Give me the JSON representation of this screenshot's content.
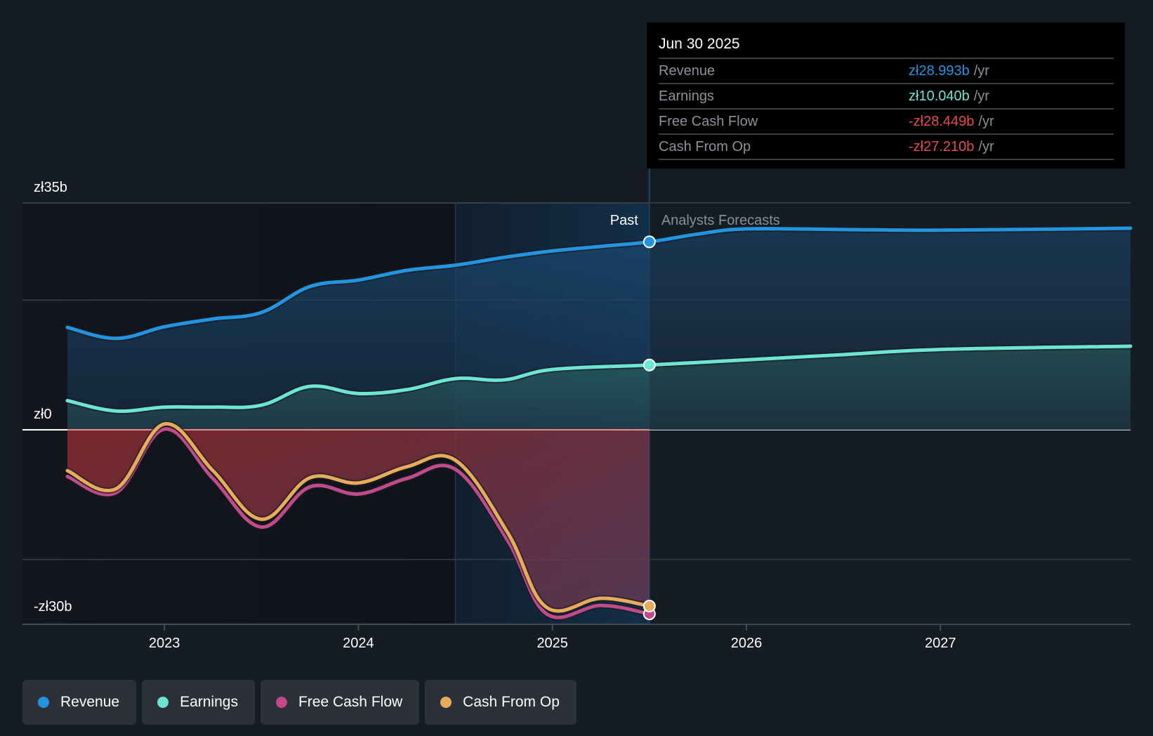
{
  "tooltip": {
    "date": "Jun 30 2025",
    "rows": [
      {
        "name": "Revenue",
        "value": "zł28.993b",
        "unit": "/yr",
        "color": "#2394df"
      },
      {
        "name": "Earnings",
        "value": "zł10.040b",
        "unit": "/yr",
        "color": "#6ce5d2"
      },
      {
        "name": "Free Cash Flow",
        "value": "-zł28.449b",
        "unit": "/yr",
        "color": "#e64a4f"
      },
      {
        "name": "Cash From Op",
        "value": "-zł27.210b",
        "unit": "/yr",
        "color": "#e64a4f"
      }
    ]
  },
  "legend": [
    {
      "label": "Revenue",
      "color": "#2394df"
    },
    {
      "label": "Earnings",
      "color": "#6ce5d2"
    },
    {
      "label": "Free Cash Flow",
      "color": "#c04a8a"
    },
    {
      "label": "Cash From Op",
      "color": "#e6ac5c"
    }
  ],
  "chart_data": {
    "type": "line",
    "title": "",
    "xlabel": "",
    "ylabel": "",
    "currency": "zł",
    "unit": "b",
    "y_tick_labels": [
      {
        "value": 35,
        "label": "zł35b"
      },
      {
        "value": 0,
        "label": "zł0"
      },
      {
        "value": -30,
        "label": "-zł30b"
      }
    ],
    "gridlines": [
      35,
      20,
      0,
      -20
    ],
    "ylim": [
      -30,
      35
    ],
    "xlim": [
      2022.5,
      2027.98
    ],
    "x_ticks": [
      {
        "value": 2023,
        "label": "2023"
      },
      {
        "value": 2024,
        "label": "2024"
      },
      {
        "value": 2025,
        "label": "2025"
      },
      {
        "value": 2026,
        "label": "2026"
      },
      {
        "value": 2027,
        "label": "2027"
      }
    ],
    "past_label": "Past",
    "forecast_label": "Analysts Forecasts",
    "divider_x": 2025.5,
    "highlight_start_x": 2024.5,
    "legend_position": "bottom-left",
    "series": [
      {
        "name": "Revenue",
        "color": "#2394df",
        "points": [
          [
            2022.5,
            15.8
          ],
          [
            2022.75,
            14.1
          ],
          [
            2023.0,
            15.9
          ],
          [
            2023.25,
            17.1
          ],
          [
            2023.5,
            18.1
          ],
          [
            2023.75,
            22.1
          ],
          [
            2024.0,
            23.1
          ],
          [
            2024.25,
            24.6
          ],
          [
            2024.5,
            25.4
          ],
          [
            2024.75,
            26.6
          ],
          [
            2025.0,
            27.6
          ],
          [
            2025.25,
            28.3
          ],
          [
            2025.5,
            29.0
          ],
          [
            2025.75,
            30.2
          ],
          [
            2026.0,
            31.0
          ],
          [
            2026.5,
            30.9
          ],
          [
            2027.0,
            30.8
          ],
          [
            2027.98,
            31.1
          ]
        ]
      },
      {
        "name": "Earnings",
        "color": "#6ce5d2",
        "points": [
          [
            2022.5,
            4.5
          ],
          [
            2022.75,
            2.9
          ],
          [
            2023.0,
            3.5
          ],
          [
            2023.25,
            3.5
          ],
          [
            2023.5,
            3.8
          ],
          [
            2023.75,
            6.7
          ],
          [
            2024.0,
            5.6
          ],
          [
            2024.25,
            6.2
          ],
          [
            2024.5,
            7.9
          ],
          [
            2024.75,
            7.7
          ],
          [
            2025.0,
            9.3
          ],
          [
            2025.5,
            10.0
          ],
          [
            2026.0,
            10.8
          ],
          [
            2026.5,
            11.6
          ],
          [
            2027.0,
            12.4
          ],
          [
            2027.98,
            12.9
          ]
        ]
      },
      {
        "name": "Free Cash Flow",
        "color": "#c04a8a",
        "points": [
          [
            2022.5,
            -7.2
          ],
          [
            2022.75,
            -9.7
          ],
          [
            2023.0,
            0.1
          ],
          [
            2023.25,
            -7.5
          ],
          [
            2023.5,
            -15.0
          ],
          [
            2023.75,
            -8.8
          ],
          [
            2024.0,
            -9.9
          ],
          [
            2024.25,
            -7.5
          ],
          [
            2024.5,
            -6.1
          ],
          [
            2024.77,
            -17.1
          ],
          [
            2024.97,
            -28.4
          ],
          [
            2025.25,
            -27.1
          ],
          [
            2025.5,
            -28.4
          ]
        ]
      },
      {
        "name": "Cash From Op",
        "color": "#e6ac5c",
        "points": [
          [
            2022.5,
            -6.3
          ],
          [
            2022.75,
            -9.1
          ],
          [
            2023.0,
            0.9
          ],
          [
            2023.25,
            -6.3
          ],
          [
            2023.5,
            -13.8
          ],
          [
            2023.75,
            -7.4
          ],
          [
            2024.0,
            -8.2
          ],
          [
            2024.25,
            -5.7
          ],
          [
            2024.5,
            -4.7
          ],
          [
            2024.77,
            -15.9
          ],
          [
            2024.97,
            -27.4
          ],
          [
            2025.25,
            -26.0
          ],
          [
            2025.5,
            -27.2
          ]
        ]
      }
    ]
  }
}
